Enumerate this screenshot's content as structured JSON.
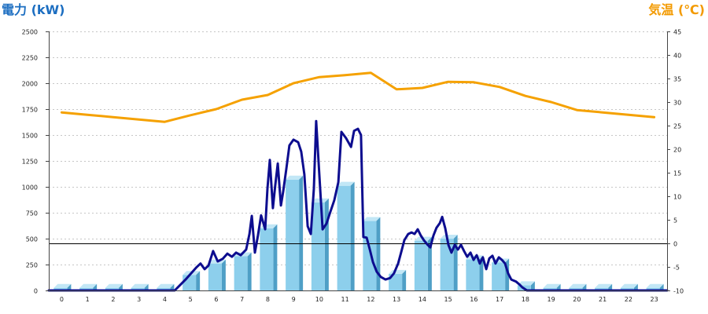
{
  "chart_data": {
    "type": "bar",
    "x_range": [
      0,
      24
    ],
    "categories": [
      "0",
      "1",
      "2",
      "3",
      "4",
      "5",
      "6",
      "7",
      "8",
      "9",
      "10",
      "11",
      "12",
      "13",
      "14",
      "15",
      "16",
      "17",
      "18",
      "19",
      "20",
      "21",
      "22",
      "23"
    ],
    "left_axis": {
      "label": "電力 (kW)",
      "min": 0,
      "max": 2500,
      "ticks": [
        "0",
        "250",
        "500",
        "750",
        "1000",
        "1250",
        "1500",
        "1750",
        "2000",
        "2250",
        "2500"
      ],
      "color": "#1c6ec1"
    },
    "right_axis": {
      "label": "気温 (℃)",
      "min": -10,
      "max": 45,
      "ticks": [
        "-10",
        "-5",
        "0",
        "5",
        "10",
        "15",
        "20",
        "25",
        "30",
        "35",
        "40",
        "45"
      ],
      "color": "#f39a00"
    },
    "grid": true,
    "series": [
      {
        "type": "bar",
        "axis": "left",
        "values": [
          25,
          25,
          25,
          25,
          25,
          150,
          260,
          330,
          600,
          1070,
          850,
          1010,
          670,
          160,
          480,
          500,
          300,
          270,
          50,
          25,
          25,
          25,
          25,
          25
        ],
        "color": "#8dcfec",
        "side_color": "#4f9fc6",
        "top_color": "#c2e7f6"
      },
      {
        "type": "line",
        "axis": "left",
        "color": "#0d0d8f",
        "points": [
          [
            0,
            0
          ],
          [
            4.89,
            0
          ],
          [
            5.07,
            45
          ],
          [
            5.31,
            105
          ],
          [
            5.56,
            175
          ],
          [
            5.74,
            225
          ],
          [
            5.89,
            260
          ],
          [
            6.05,
            205
          ],
          [
            6.2,
            240
          ],
          [
            6.38,
            380
          ],
          [
            6.56,
            280
          ],
          [
            6.75,
            305
          ],
          [
            6.93,
            355
          ],
          [
            7.11,
            325
          ],
          [
            7.27,
            365
          ],
          [
            7.45,
            340
          ],
          [
            7.66,
            395
          ],
          [
            7.79,
            545
          ],
          [
            7.88,
            720
          ],
          [
            8.0,
            365
          ],
          [
            8.12,
            530
          ],
          [
            8.24,
            725
          ],
          [
            8.4,
            590
          ],
          [
            8.49,
            985
          ],
          [
            8.58,
            1260
          ],
          [
            8.7,
            795
          ],
          [
            8.79,
            1015
          ],
          [
            8.89,
            1225
          ],
          [
            9.01,
            820
          ],
          [
            9.1,
            955
          ],
          [
            9.22,
            1175
          ],
          [
            9.34,
            1400
          ],
          [
            9.5,
            1455
          ],
          [
            9.68,
            1430
          ],
          [
            9.8,
            1340
          ],
          [
            9.92,
            1120
          ],
          [
            10.05,
            620
          ],
          [
            10.17,
            545
          ],
          [
            10.29,
            985
          ],
          [
            10.38,
            1635
          ],
          [
            10.5,
            1120
          ],
          [
            10.63,
            590
          ],
          [
            10.78,
            645
          ],
          [
            10.93,
            760
          ],
          [
            11.08,
            870
          ],
          [
            11.24,
            1045
          ],
          [
            11.36,
            1530
          ],
          [
            11.54,
            1470
          ],
          [
            11.73,
            1385
          ],
          [
            11.85,
            1540
          ],
          [
            12.0,
            1560
          ],
          [
            12.12,
            1500
          ],
          [
            12.21,
            515
          ],
          [
            12.34,
            510
          ],
          [
            12.46,
            395
          ],
          [
            12.58,
            275
          ],
          [
            12.73,
            180
          ],
          [
            12.89,
            130
          ],
          [
            13.07,
            105
          ],
          [
            13.25,
            120
          ],
          [
            13.4,
            165
          ],
          [
            13.56,
            260
          ],
          [
            13.68,
            370
          ],
          [
            13.8,
            485
          ],
          [
            13.95,
            545
          ],
          [
            14.08,
            560
          ],
          [
            14.2,
            545
          ],
          [
            14.32,
            590
          ],
          [
            14.44,
            530
          ],
          [
            14.56,
            485
          ],
          [
            14.69,
            445
          ],
          [
            14.81,
            415
          ],
          [
            14.93,
            530
          ],
          [
            15.05,
            605
          ],
          [
            15.18,
            650
          ],
          [
            15.27,
            710
          ],
          [
            15.39,
            600
          ],
          [
            15.51,
            440
          ],
          [
            15.63,
            365
          ],
          [
            15.76,
            440
          ],
          [
            15.88,
            395
          ],
          [
            16.0,
            440
          ],
          [
            16.12,
            380
          ],
          [
            16.24,
            325
          ],
          [
            16.37,
            365
          ],
          [
            16.49,
            295
          ],
          [
            16.61,
            340
          ],
          [
            16.73,
            260
          ],
          [
            16.85,
            320
          ],
          [
            16.98,
            205
          ],
          [
            17.1,
            310
          ],
          [
            17.22,
            335
          ],
          [
            17.34,
            260
          ],
          [
            17.47,
            320
          ],
          [
            17.59,
            295
          ],
          [
            17.71,
            260
          ],
          [
            17.83,
            165
          ],
          [
            17.95,
            105
          ],
          [
            18.14,
            85
          ],
          [
            18.26,
            60
          ],
          [
            18.38,
            30
          ],
          [
            18.56,
            0
          ],
          [
            24,
            0
          ]
        ]
      },
      {
        "type": "line",
        "axis": "right",
        "color": "#f5a100",
        "values": [
          27.8,
          27.3,
          26.8,
          26.3,
          25.8,
          27.2,
          28.5,
          30.5,
          31.5,
          34.0,
          35.3,
          35.7,
          36.2,
          32.7,
          33.0,
          34.3,
          34.2,
          33.2,
          31.3,
          30.0,
          28.3,
          27.8,
          27.3,
          26.8
        ]
      }
    ],
    "reference_line": {
      "axis": "right",
      "value": 0,
      "color": "#000000"
    }
  }
}
